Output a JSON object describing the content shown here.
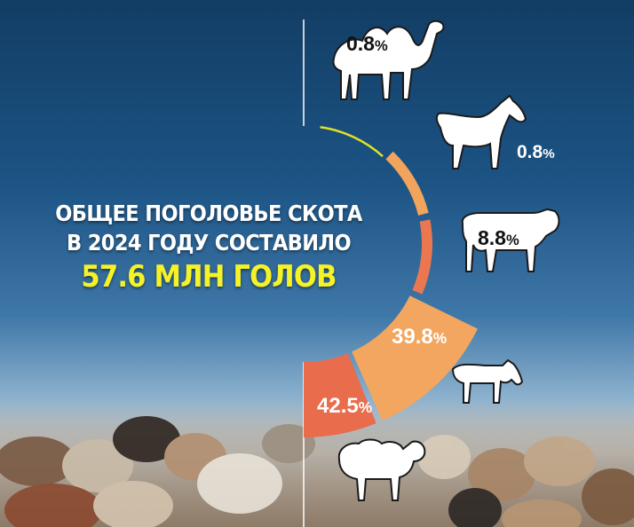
{
  "headline": {
    "line1": "ОБЩЕЕ ПОГОЛОВЬЕ СКОТА",
    "line2": "В 2024 ГОДУ СОСТАВИЛО",
    "line3": "57.6 МЛН ГОЛОВ"
  },
  "chart_data": {
    "type": "pie",
    "total": "57.6 МЛН ГОЛОВ",
    "slices": [
      {
        "label": "0.8",
        "unit": "%",
        "value": 0.8,
        "animal": "camel-icon"
      },
      {
        "label": "0.8",
        "unit": "%",
        "value": 0.8,
        "animal": "horse-icon"
      },
      {
        "label": "8.8",
        "unit": "%",
        "value": 8.8,
        "animal": "cow-icon"
      },
      {
        "label": "39.8",
        "unit": "%",
        "value": 39.8,
        "animal": "goat-icon"
      },
      {
        "label": "42.5",
        "unit": "%",
        "value": 42.5,
        "animal": "sheep-icon"
      }
    ],
    "colors": [
      "#e0e223",
      "#f2a35c",
      "#ea7750",
      "#f2a660",
      "#e96c4c"
    ]
  }
}
